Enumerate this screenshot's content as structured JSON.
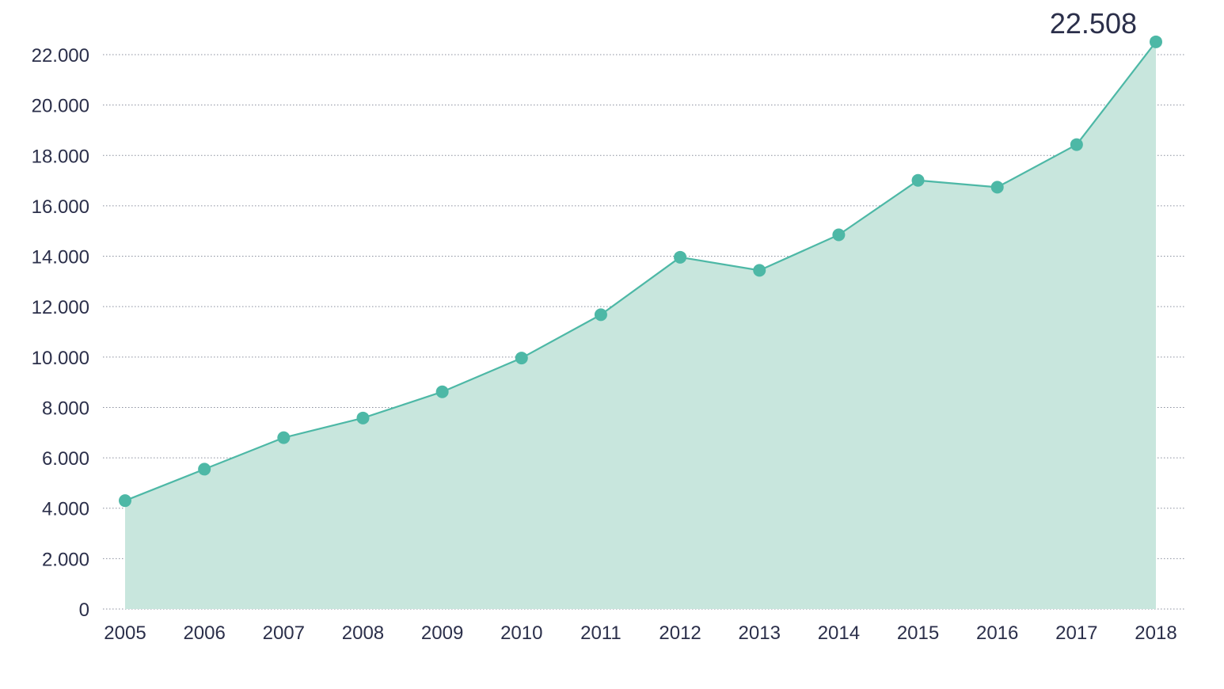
{
  "chart_data": {
    "type": "area",
    "title": "",
    "xlabel": "",
    "ylabel": "",
    "x": [
      "2005",
      "2006",
      "2007",
      "2008",
      "2009",
      "2010",
      "2011",
      "2012",
      "2013",
      "2014",
      "2015",
      "2016",
      "2017",
      "2018"
    ],
    "series": [
      {
        "values": [
          4300,
          5550,
          6800,
          7580,
          8620,
          9960,
          11680,
          13960,
          13440,
          14850,
          17010,
          16740,
          18430,
          22508
        ]
      }
    ],
    "ylim": [
      0,
      22000
    ],
    "yticks": [
      0,
      2000,
      4000,
      6000,
      8000,
      10000,
      12000,
      14000,
      16000,
      18000,
      20000,
      22000
    ],
    "ytick_labels": [
      "0",
      "2.000",
      "4.000",
      "6.000",
      "8.000",
      "10.000",
      "12.000",
      "14.000",
      "16.000",
      "18.000",
      "20.000",
      "22.000"
    ],
    "grid": true,
    "legend": "none",
    "annotations": [
      {
        "x": "2018",
        "text": "22.508"
      }
    ],
    "colors": {
      "line": "#4db8a6",
      "fill": "#c8e6dd",
      "marker": "#4db8a6",
      "grid": "#8a8f9e",
      "text": "#2b2f4a"
    }
  }
}
